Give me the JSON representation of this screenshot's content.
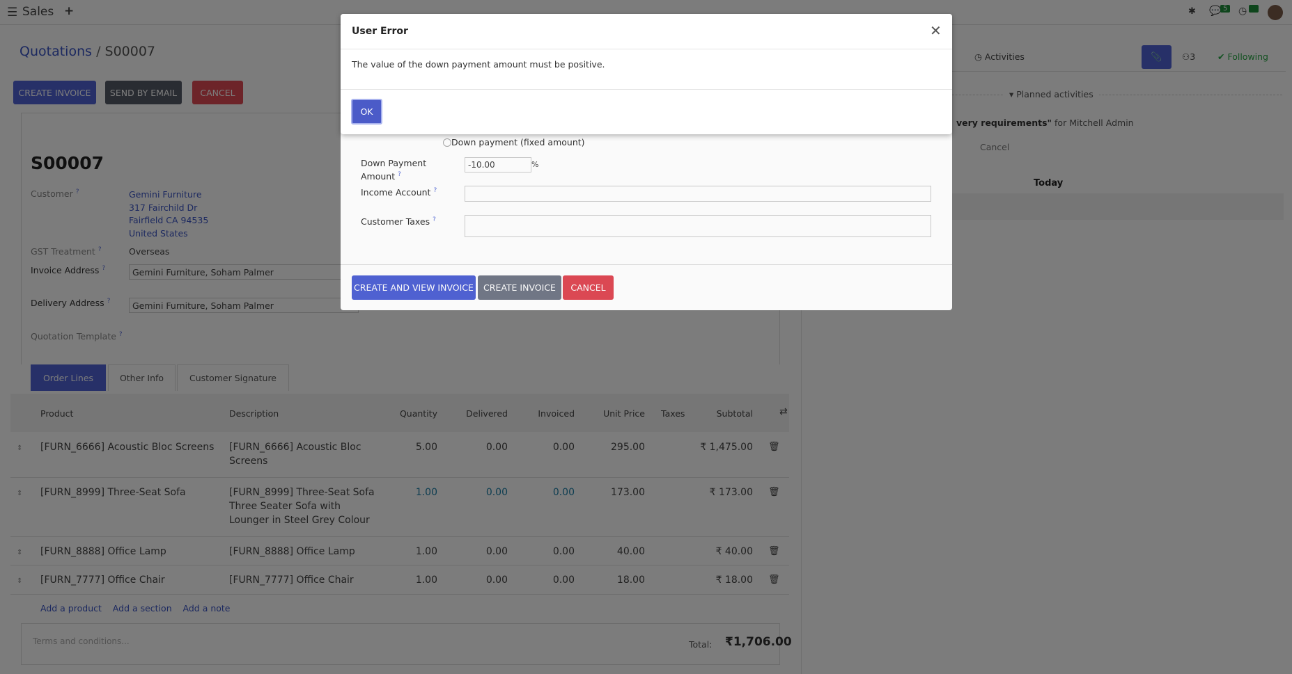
{
  "topnav": {
    "app": "Sales",
    "messages_count": "5",
    "activities_count": "5"
  },
  "breadcrumb": {
    "parent": "Quotations",
    "current": "S00007"
  },
  "actions": {
    "create_invoice": "CREATE INVOICE",
    "send_email": "SEND BY EMAIL",
    "cancel": "CANCEL"
  },
  "form": {
    "name": "S00007",
    "customer_label": "Customer",
    "customer_name": "Gemini Furniture",
    "customer_street": "317 Fairchild Dr",
    "customer_city": "Fairfield CA 94535",
    "customer_country": "United States",
    "gst_label": "GST Treatment",
    "gst_value": "Overseas",
    "invoice_addr_label": "Invoice Address",
    "invoice_addr_value": "Gemini Furniture, Soham Palmer",
    "delivery_addr_label": "Delivery Address",
    "delivery_addr_value": "Gemini Furniture, Soham Palmer",
    "template_label": "Quotation Template",
    "help": "?"
  },
  "tabs": [
    "Order Lines",
    "Other Info",
    "Customer Signature"
  ],
  "table": {
    "headers": [
      "Product",
      "Description",
      "Quantity",
      "Delivered",
      "Invoiced",
      "Unit Price",
      "Taxes",
      "Subtotal"
    ],
    "rows": [
      {
        "product": "[FURN_6666] Acoustic Bloc Screens",
        "description": "[FURN_6666] Acoustic Bloc Screens",
        "quantity": "5.00",
        "delivered": "0.00",
        "invoiced": "0.00",
        "unit_price": "295.00",
        "taxes": "",
        "subtotal": "₹ 1,475.00"
      },
      {
        "product": "[FURN_8999] Three-Seat Sofa",
        "description": "[FURN_8999] Three-Seat Sofa Three Seater Sofa with Lounger in Steel Grey Colour",
        "quantity": "1.00",
        "delivered": "0.00",
        "invoiced": "0.00",
        "unit_price": "173.00",
        "taxes": "",
        "subtotal": "₹ 173.00"
      },
      {
        "product": "[FURN_8888] Office Lamp",
        "description": "[FURN_8888] Office Lamp",
        "quantity": "1.00",
        "delivered": "0.00",
        "invoiced": "0.00",
        "unit_price": "40.00",
        "taxes": "",
        "subtotal": "₹ 40.00"
      },
      {
        "product": "[FURN_7777] Office Chair",
        "description": "[FURN_7777] Office Chair",
        "quantity": "1.00",
        "delivered": "0.00",
        "invoiced": "0.00",
        "unit_price": "18.00",
        "taxes": "",
        "subtotal": "₹ 18.00"
      }
    ],
    "add_product": "Add a product",
    "add_section": "Add a section",
    "add_note": "Add a note",
    "terms_placeholder": "Terms and conditions...",
    "total_label": "Total:",
    "total_value": "₹1,706.00"
  },
  "chatter": {
    "activities": "Activities",
    "followers_count": "3",
    "following": "Following",
    "planned": "Planned activities",
    "activity_text": "very requirements\"",
    "activity_for": "for Mitchell Admin",
    "cancel": "Cancel",
    "today": "Today"
  },
  "wizard": {
    "radio_fixed": "Down payment (fixed amount)",
    "amount_label_1": "Down Payment",
    "amount_label_2": "Amount",
    "amount_value": "-10.00",
    "percent": "%",
    "income_label": "Income Account",
    "taxes_label": "Customer Taxes",
    "create_view": "CREATE AND VIEW INVOICE",
    "create": "CREATE INVOICE",
    "cancel": "CANCEL"
  },
  "error_dialog": {
    "title": "User Error",
    "message": "The value of the down payment amount must be positive.",
    "ok": "OK"
  },
  "colors": {
    "primary": "#5163d6",
    "danger": "#e04a55",
    "following": "#28a745",
    "badge": "#1f8f3a"
  }
}
